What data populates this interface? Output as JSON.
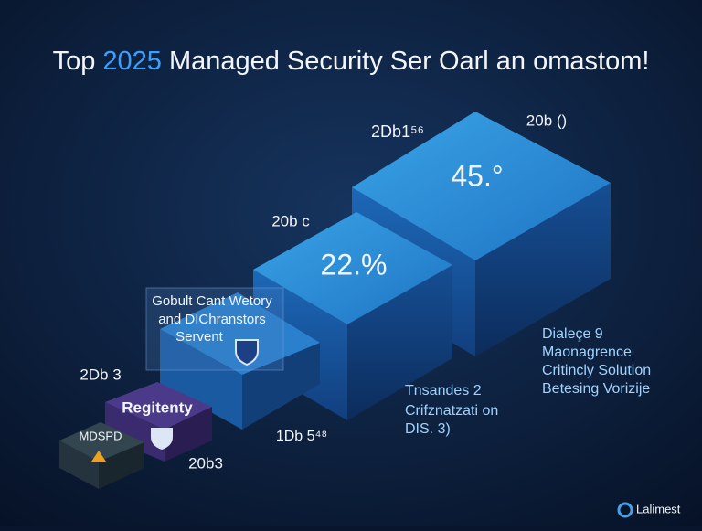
{
  "header": {
    "title_parts": [
      "Top",
      "2025",
      "Managed Security Ser Oarl an omastom!"
    ]
  },
  "blocks": [
    {
      "label": "2Db1⁵⁶",
      "value_text": "45.°",
      "side_label": "20b ()"
    },
    {
      "label": "20b c",
      "value_text": "22.%"
    },
    {
      "label": "2Db 3",
      "inner_label": "Regitenty",
      "bottom_label": "20b3"
    },
    {
      "inner_label": "MDSPD"
    }
  ],
  "callouts": [
    {
      "lines": [
        "Gobult Cant Wetory",
        "and DIChranstors",
        "Servent"
      ]
    },
    {
      "lines": [
        "Dialeçe 9",
        "Maonagrence",
        "Critincly Solution",
        "Betesing Vorizije"
      ]
    },
    {
      "lines": [
        "Tnsandes 2",
        "Crifznatzati on",
        "DIS. 3)"
      ]
    },
    {
      "lines": [
        "1Db 5⁴⁸"
      ]
    }
  ],
  "footer": {
    "brand": "Lalimest"
  }
}
